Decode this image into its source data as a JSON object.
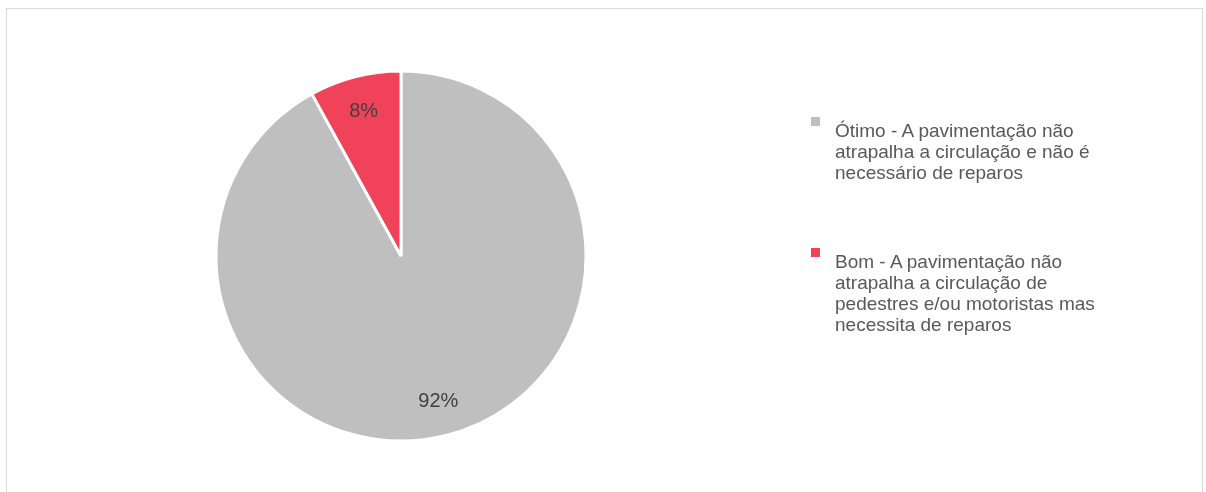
{
  "chart_data": {
    "type": "pie",
    "categories": [
      "Ótimo - A pavimentação não atrapalha a circulação e não é necessário de reparos",
      "Bom - A pavimentação não atrapalha a circulação de pedestres e/ou motoristas mas necessita de reparos"
    ],
    "values": [
      92,
      8
    ],
    "colors": [
      "#bfbfbf",
      "#f0435a"
    ],
    "value_labels": [
      "92%",
      "8%"
    ],
    "legend": "right"
  }
}
